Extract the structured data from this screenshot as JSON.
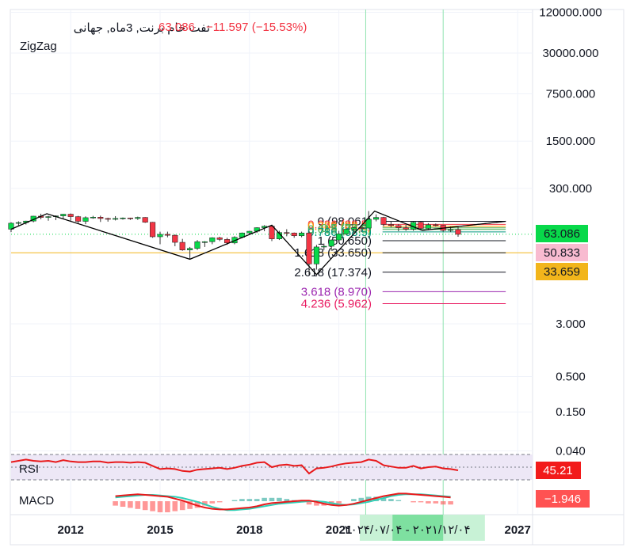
{
  "header": {
    "symbol": "نفت خام برنت, 3ماه, جهانی",
    "last": "63.086",
    "change": "−11.597 (−15.53%)",
    "indicator": "ZigZag"
  },
  "colors": {
    "up": "#22ab94",
    "up_body": "#08d94a",
    "down": "#f23645",
    "grid": "#f0f3fa",
    "rsi_line": "#e8191b",
    "rsi_band": "#ede7f6",
    "macd_line": "#e8191b",
    "signal_line": "#2fd0b7",
    "zigzag": "#000000",
    "support": "#f2b51b"
  },
  "price_axis": {
    "ticks": [
      "120000.000",
      "30000.000",
      "7500.000",
      "1500.000",
      "300.000",
      "3.000",
      "0.500",
      "0.150",
      "0.040"
    ]
  },
  "time_axis": {
    "ticks": [
      "2012",
      "2015",
      "2018",
      "2021",
      "2027"
    ],
    "range_label": "۲۰۲۱/۱۲/۰۴ - ۲۰۲۴/۰۷/۰۴"
  },
  "price_tags": [
    {
      "text": "63.086",
      "bg": "#08d94a",
      "fg": "#131722"
    },
    {
      "text": "50.833",
      "bg": "#f8bbd0",
      "fg": "#131722"
    },
    {
      "text": "33.659",
      "bg": "#f2b51b",
      "fg": "#131722"
    }
  ],
  "panes": {
    "rsi": {
      "label": "RSI",
      "value": "45.21"
    },
    "macd": {
      "label": "MACD",
      "value": "−1.946"
    }
  },
  "chart_data": {
    "type": "candlestick",
    "title": "نفت خام برنت, 3ماه, جهانی",
    "y_scale": "log",
    "x_range": [
      2010.0,
      2027.5
    ],
    "candles": [
      {
        "t": 2010.0,
        "o": 75,
        "h": 95,
        "l": 68,
        "c": 92
      },
      {
        "t": 2010.25,
        "o": 92,
        "h": 98,
        "l": 85,
        "c": 94
      },
      {
        "t": 2010.5,
        "o": 94,
        "h": 100,
        "l": 88,
        "c": 99
      },
      {
        "t": 2010.75,
        "o": 99,
        "h": 118,
        "l": 95,
        "c": 117
      },
      {
        "t": 2011.0,
        "o": 117,
        "h": 127,
        "l": 105,
        "c": 112
      },
      {
        "t": 2011.25,
        "o": 112,
        "h": 118,
        "l": 100,
        "c": 115
      },
      {
        "t": 2011.5,
        "o": 115,
        "h": 120,
        "l": 102,
        "c": 118
      },
      {
        "t": 2011.75,
        "o": 118,
        "h": 126,
        "l": 105,
        "c": 125
      },
      {
        "t": 2012.0,
        "o": 125,
        "h": 128,
        "l": 100,
        "c": 115
      },
      {
        "t": 2012.25,
        "o": 115,
        "h": 118,
        "l": 92,
        "c": 98
      },
      {
        "t": 2012.5,
        "o": 98,
        "h": 116,
        "l": 89,
        "c": 111
      },
      {
        "t": 2012.75,
        "o": 111,
        "h": 118,
        "l": 107,
        "c": 113
      },
      {
        "t": 2013.0,
        "o": 113,
        "h": 119,
        "l": 96,
        "c": 108
      },
      {
        "t": 2013.25,
        "o": 108,
        "h": 111,
        "l": 97,
        "c": 105
      },
      {
        "t": 2013.5,
        "o": 105,
        "h": 117,
        "l": 101,
        "c": 108
      },
      {
        "t": 2013.75,
        "o": 108,
        "h": 112,
        "l": 104,
        "c": 110
      },
      {
        "t": 2014.0,
        "o": 110,
        "h": 111,
        "l": 103,
        "c": 108
      },
      {
        "t": 2014.25,
        "o": 108,
        "h": 115,
        "l": 103,
        "c": 112
      },
      {
        "t": 2014.5,
        "o": 112,
        "h": 113,
        "l": 93,
        "c": 95
      },
      {
        "t": 2014.75,
        "o": 95,
        "h": 96,
        "l": 56,
        "c": 58
      },
      {
        "t": 2015.0,
        "o": 58,
        "h": 69,
        "l": 45,
        "c": 63
      },
      {
        "t": 2015.25,
        "o": 63,
        "h": 69,
        "l": 57,
        "c": 61
      },
      {
        "t": 2015.5,
        "o": 61,
        "h": 63,
        "l": 42,
        "c": 48
      },
      {
        "t": 2015.75,
        "o": 48,
        "h": 54,
        "l": 36,
        "c": 37
      },
      {
        "t": 2016.0,
        "o": 37,
        "h": 41,
        "l": 27,
        "c": 39
      },
      {
        "t": 2016.25,
        "o": 39,
        "h": 52,
        "l": 37,
        "c": 49
      },
      {
        "t": 2016.5,
        "o": 49,
        "h": 50,
        "l": 41,
        "c": 49
      },
      {
        "t": 2016.75,
        "o": 49,
        "h": 57,
        "l": 45,
        "c": 56
      },
      {
        "t": 2017.0,
        "o": 56,
        "h": 58,
        "l": 50,
        "c": 53
      },
      {
        "t": 2017.25,
        "o": 53,
        "h": 56,
        "l": 44,
        "c": 47
      },
      {
        "t": 2017.5,
        "o": 47,
        "h": 59,
        "l": 45,
        "c": 57
      },
      {
        "t": 2017.75,
        "o": 57,
        "h": 67,
        "l": 55,
        "c": 66
      },
      {
        "t": 2018.0,
        "o": 66,
        "h": 71,
        "l": 62,
        "c": 70
      },
      {
        "t": 2018.25,
        "o": 70,
        "h": 80,
        "l": 66,
        "c": 79
      },
      {
        "t": 2018.5,
        "o": 79,
        "h": 86,
        "l": 70,
        "c": 83
      },
      {
        "t": 2018.75,
        "o": 83,
        "h": 86,
        "l": 50,
        "c": 54
      },
      {
        "t": 2019.0,
        "o": 54,
        "h": 71,
        "l": 52,
        "c": 67
      },
      {
        "t": 2019.25,
        "o": 67,
        "h": 75,
        "l": 59,
        "c": 66
      },
      {
        "t": 2019.5,
        "o": 66,
        "h": 67,
        "l": 56,
        "c": 60
      },
      {
        "t": 2019.75,
        "o": 60,
        "h": 69,
        "l": 57,
        "c": 66
      },
      {
        "t": 2020.0,
        "o": 66,
        "h": 71,
        "l": 16,
        "c": 23
      },
      {
        "t": 2020.25,
        "o": 23,
        "h": 44,
        "l": 19,
        "c": 41
      },
      {
        "t": 2020.5,
        "o": 41,
        "h": 46,
        "l": 37,
        "c": 42
      },
      {
        "t": 2020.75,
        "o": 42,
        "h": 53,
        "l": 36,
        "c": 52
      },
      {
        "t": 2021.0,
        "o": 52,
        "h": 71,
        "l": 50,
        "c": 64
      },
      {
        "t": 2021.25,
        "o": 64,
        "h": 77,
        "l": 61,
        "c": 75
      },
      {
        "t": 2021.5,
        "o": 75,
        "h": 81,
        "l": 65,
        "c": 79
      },
      {
        "t": 2021.75,
        "o": 79,
        "h": 86,
        "l": 68,
        "c": 78
      },
      {
        "t": 2022.0,
        "o": 78,
        "h": 139,
        "l": 77,
        "c": 105
      },
      {
        "t": 2022.25,
        "o": 105,
        "h": 124,
        "l": 98,
        "c": 112
      },
      {
        "t": 2022.5,
        "o": 112,
        "h": 114,
        "l": 82,
        "c": 88
      },
      {
        "t": 2022.75,
        "o": 88,
        "h": 99,
        "l": 80,
        "c": 85
      },
      {
        "t": 2023.0,
        "o": 85,
        "h": 89,
        "l": 70,
        "c": 79
      },
      {
        "t": 2023.25,
        "o": 79,
        "h": 87,
        "l": 71,
        "c": 75
      },
      {
        "t": 2023.5,
        "o": 75,
        "h": 97,
        "l": 71,
        "c": 95
      },
      {
        "t": 2023.75,
        "o": 95,
        "h": 97,
        "l": 72,
        "c": 77
      },
      {
        "t": 2024.0,
        "o": 77,
        "h": 92,
        "l": 75,
        "c": 87
      },
      {
        "t": 2024.25,
        "o": 87,
        "h": 91,
        "l": 82,
        "c": 86
      },
      {
        "t": 2024.5,
        "o": 86,
        "h": 87,
        "l": 69,
        "c": 72
      },
      {
        "t": 2024.75,
        "o": 72,
        "h": 82,
        "l": 68,
        "c": 74
      },
      {
        "t": 2025.0,
        "o": 74,
        "h": 82,
        "l": 58,
        "c": 63
      }
    ],
    "zigzag": [
      {
        "t": 2010.0,
        "v": 75
      },
      {
        "t": 2011.2,
        "v": 127
      },
      {
        "t": 2016.0,
        "v": 27
      },
      {
        "t": 2018.75,
        "v": 86
      },
      {
        "t": 2020.25,
        "v": 16
      },
      {
        "t": 2022.2,
        "v": 139
      },
      {
        "t": 2023.8,
        "v": 72
      },
      {
        "t": 2026.6,
        "v": 98
      }
    ],
    "fib_levels": [
      {
        "ratio": "0",
        "label": "0 (98.061)",
        "value": 98.061,
        "color": "#131722"
      },
      {
        "ratio": "0.236",
        "label": "0.236 (88.5)",
        "value": 88.5,
        "color": "#f23645"
      },
      {
        "ratio": "0.382",
        "label": "0.382 (83.0)",
        "value": 83.0,
        "color": "#ff9800"
      },
      {
        "ratio": "0.5",
        "label": "0.5 (78.5)",
        "value": 78.5,
        "color": "#4caf50"
      },
      {
        "ratio": "0.618",
        "label": "0.618 (74.5)",
        "value": 74.5,
        "color": "#4caf50"
      },
      {
        "ratio": "0.786",
        "label": "0.786 (68.5)",
        "value": 68.5,
        "color": "#089981"
      },
      {
        "ratio": "1",
        "label": "1 (50.650)",
        "value": 50.65,
        "color": "#131722"
      },
      {
        "ratio": "1.618",
        "label": "1.618 (33.650)",
        "value": 33.65,
        "color": "#131722"
      },
      {
        "ratio": "2.618",
        "label": "2.618 (17.374)",
        "value": 17.374,
        "color": "#131722"
      },
      {
        "ratio": "3.618",
        "label": "3.618 (8.970)",
        "value": 8.97,
        "color": "#9c27b0"
      },
      {
        "ratio": "4.236",
        "label": "4.236 (5.962)",
        "value": 5.962,
        "color": "#e91e63"
      }
    ],
    "horizontal_lines": [
      {
        "value": 33.659,
        "color": "#f2b51b"
      }
    ],
    "vertical_markers": [
      2021.9,
      2024.5
    ],
    "rsi": {
      "values": [
        58,
        60,
        62,
        60,
        59,
        60,
        58,
        61,
        59,
        58,
        58,
        59,
        59,
        57,
        58,
        58,
        57,
        58,
        57,
        52,
        47,
        48,
        47,
        44,
        43,
        46,
        47,
        48,
        49,
        47,
        49,
        52,
        54,
        57,
        58,
        50,
        53,
        54,
        52,
        53,
        40,
        48,
        49,
        51,
        54,
        56,
        57,
        58,
        62,
        60,
        53,
        51,
        49,
        49,
        52,
        48,
        50,
        51,
        48,
        47,
        45
      ],
      "range": [
        0,
        100
      ],
      "bands": [
        30,
        70
      ]
    },
    "macd": {
      "macd": [
        8,
        9,
        10,
        11,
        10,
        9,
        8,
        7,
        4,
        1,
        -3,
        -7,
        -10,
        -12,
        -13,
        -13,
        -12,
        -11,
        -10,
        -8,
        -5,
        -3,
        -2,
        -1,
        0,
        1,
        1,
        -1,
        -4,
        -6,
        -7,
        -6,
        -4,
        -1,
        2,
        5,
        8,
        10,
        12,
        12,
        11,
        10,
        9,
        8,
        7,
        6
      ],
      "signal": [
        6,
        7,
        8,
        9,
        10,
        10,
        9,
        8,
        7,
        5,
        2,
        -1,
        -5,
        -9,
        -12,
        -14,
        -14,
        -13,
        -12,
        -10,
        -8,
        -6,
        -4,
        -3,
        -2,
        -1,
        0,
        0,
        -1,
        -3,
        -5,
        -6,
        -5,
        -3,
        -1,
        2,
        5,
        8,
        10,
        11,
        11,
        11,
        10,
        9,
        8,
        7
      ],
      "histogram": [
        -4,
        -5,
        -6,
        -7,
        -8,
        -9,
        -10,
        -10,
        -9,
        -8,
        -7,
        -6,
        -4,
        -2,
        -1,
        0,
        1,
        2,
        2,
        2,
        3,
        3,
        3,
        2,
        1,
        -1,
        -3,
        -4,
        -4,
        -3,
        -2,
        0,
        2,
        3,
        4,
        4,
        3,
        2,
        1,
        0,
        -1,
        -1,
        -2,
        -2,
        -3,
        -3
      ]
    }
  }
}
